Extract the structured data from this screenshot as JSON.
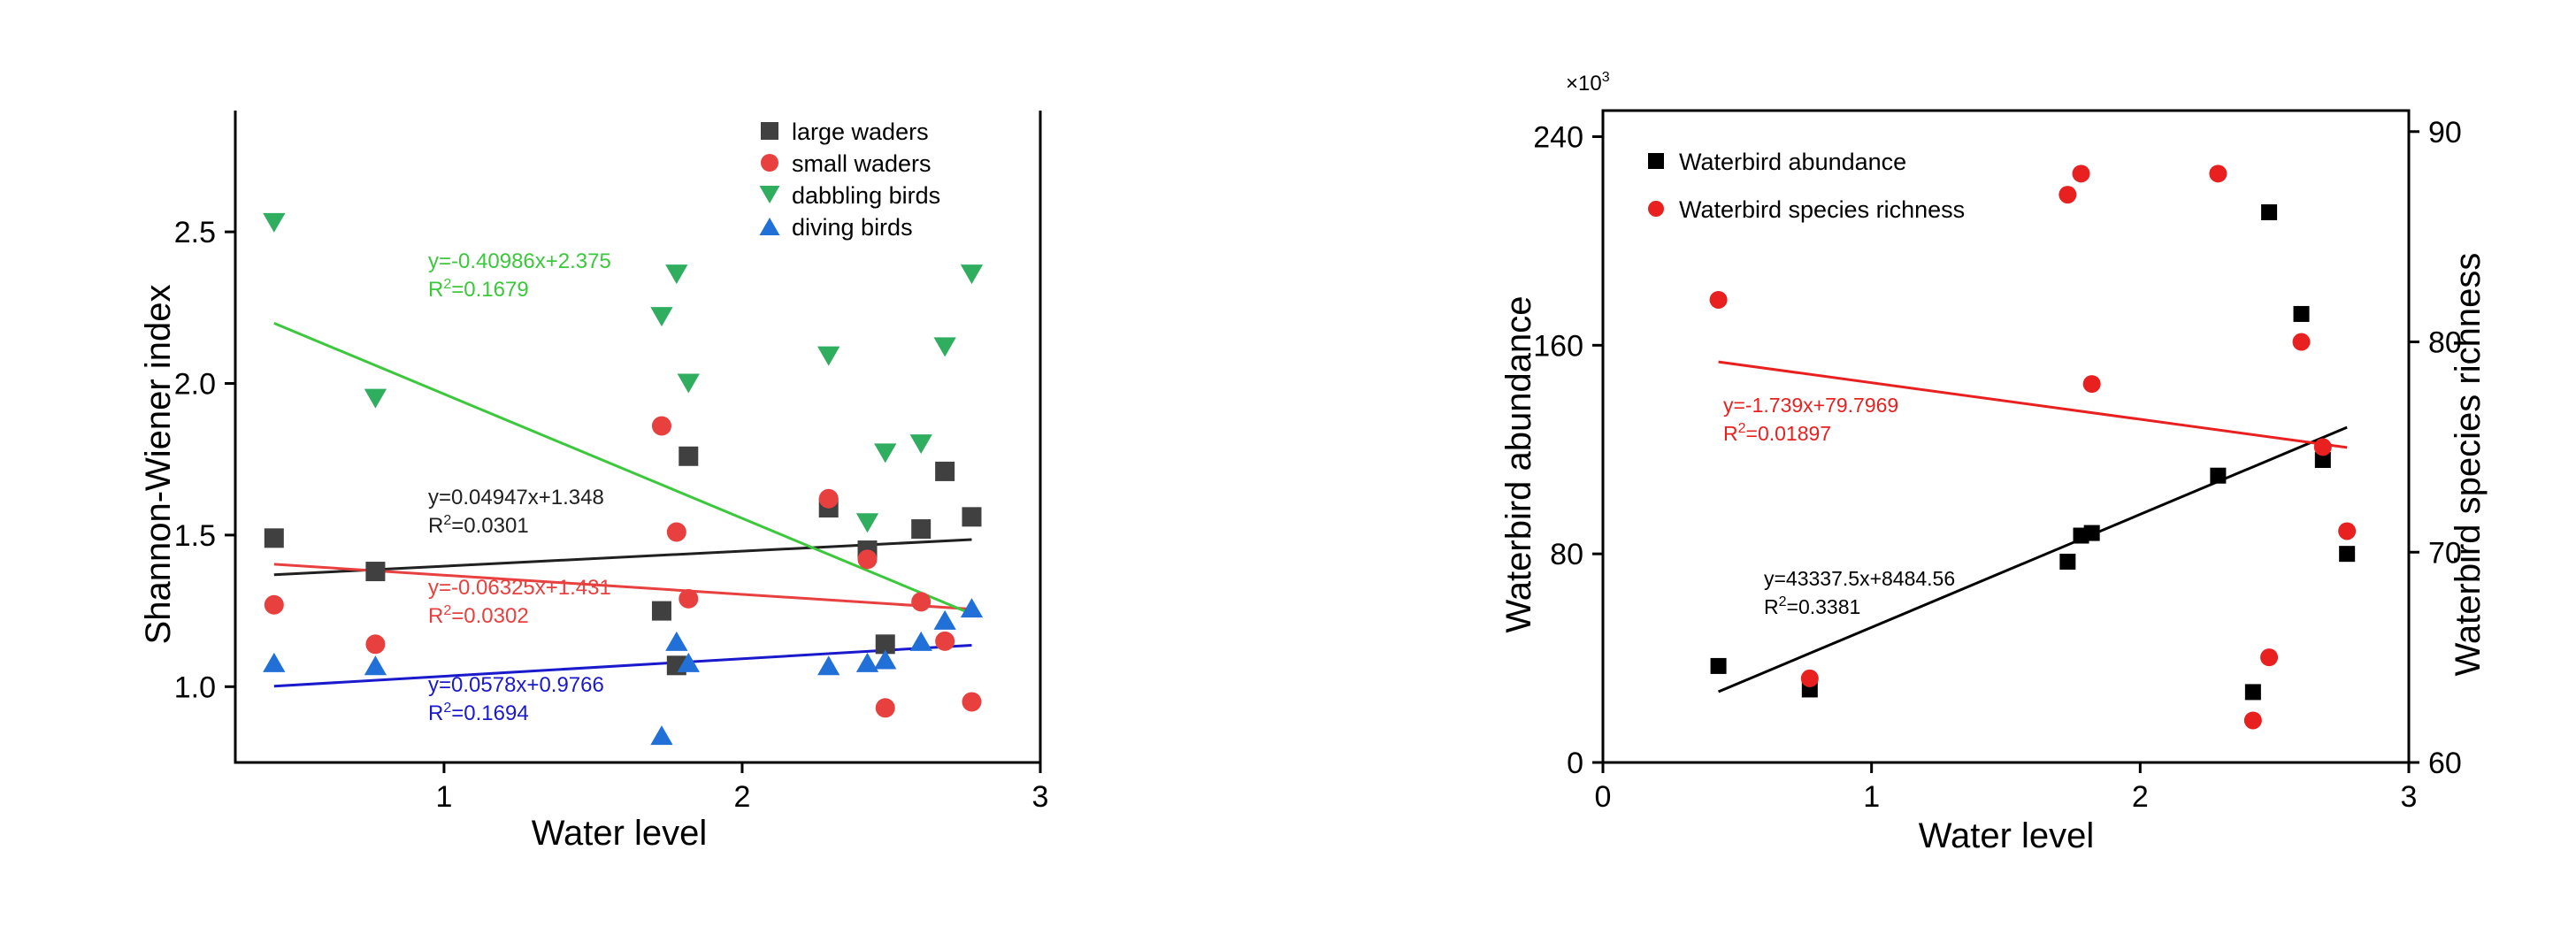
{
  "chart_data": [
    {
      "type": "scatter",
      "xlabel": "Water level",
      "ylabel": "Shannon-Wiener index",
      "xlim": [
        0.3,
        3.0
      ],
      "ylim": [
        0.75,
        2.9
      ],
      "xticks": [
        1,
        2,
        3
      ],
      "yticks": [
        1.0,
        1.5,
        2.0,
        2.5
      ],
      "ytick_labels": [
        "1.0",
        "1.5",
        "2.0",
        "2.5"
      ],
      "legend_position": "top-right",
      "series": [
        {
          "name": "large waders",
          "marker": "square",
          "color": "#404040",
          "points": [
            [
              0.43,
              1.49
            ],
            [
              0.77,
              1.38
            ],
            [
              1.73,
              1.25
            ],
            [
              1.78,
              1.07
            ],
            [
              1.82,
              1.76
            ],
            [
              2.29,
              1.59
            ],
            [
              2.42,
              1.45
            ],
            [
              2.48,
              1.14
            ],
            [
              2.6,
              1.52
            ],
            [
              2.68,
              1.71
            ],
            [
              2.77,
              1.56
            ]
          ],
          "fit": {
            "slope": 0.04947,
            "intercept": 1.348,
            "equation": "y=0.04947x+1.348",
            "r2_prefix": "R",
            "r2_value": "=0.0301",
            "color": "#202020"
          }
        },
        {
          "name": "small waders",
          "marker": "circle",
          "color": "#e8403f",
          "points": [
            [
              0.43,
              1.27
            ],
            [
              0.77,
              1.14
            ],
            [
              1.73,
              1.86
            ],
            [
              1.78,
              1.51
            ],
            [
              1.82,
              1.29
            ],
            [
              2.29,
              1.62
            ],
            [
              2.42,
              1.42
            ],
            [
              2.48,
              0.93
            ],
            [
              2.6,
              1.28
            ],
            [
              2.68,
              1.15
            ],
            [
              2.77,
              0.95
            ]
          ],
          "fit": {
            "slope": -0.06325,
            "intercept": 1.431,
            "equation": "y=-0.06325x+1.431",
            "r2_prefix": "R",
            "r2_value": "=0.0302",
            "color": "#e8403f"
          }
        },
        {
          "name": "dabbling birds",
          "marker": "triangle-down",
          "color": "#2fae60",
          "points": [
            [
              0.43,
              2.53
            ],
            [
              0.77,
              1.95
            ],
            [
              1.73,
              2.22
            ],
            [
              1.78,
              2.36
            ],
            [
              1.82,
              2.0
            ],
            [
              2.29,
              2.09
            ],
            [
              2.42,
              1.54
            ],
            [
              2.48,
              1.77
            ],
            [
              2.6,
              1.8
            ],
            [
              2.68,
              2.12
            ],
            [
              2.77,
              2.36
            ]
          ],
          "fit": {
            "slope": -0.40986,
            "intercept": 2.375,
            "equation": "y=-0.40986x+2.375",
            "r2_prefix": "R",
            "r2_value": "=0.1679",
            "color": "#3cc83c"
          }
        },
        {
          "name": "diving birds",
          "marker": "triangle-up",
          "color": "#2070d8",
          "points": [
            [
              0.43,
              1.08
            ],
            [
              0.77,
              1.07
            ],
            [
              1.73,
              0.84
            ],
            [
              1.78,
              1.15
            ],
            [
              1.82,
              1.08
            ],
            [
              2.29,
              1.07
            ],
            [
              2.42,
              1.08
            ],
            [
              2.48,
              1.09
            ],
            [
              2.6,
              1.15
            ],
            [
              2.68,
              1.22
            ],
            [
              2.77,
              1.26
            ]
          ],
          "fit": {
            "slope": 0.0578,
            "intercept": 0.9766,
            "equation": "y=0.0578x+0.9766",
            "r2_prefix": "R",
            "r2_value": "=0.1694",
            "color": "#1a1acc"
          }
        }
      ]
    },
    {
      "type": "scatter",
      "xlabel": "Water level",
      "ylabel_left": "Waterbird abundance",
      "ylabel_right": "Waterbird species richness",
      "multiplier": "×10",
      "multiplier_exp": "3",
      "xlim": [
        0,
        3
      ],
      "xticks": [
        0,
        1,
        2,
        3
      ],
      "ylim_left": [
        0,
        250
      ],
      "yticks_left": [
        0,
        80,
        160,
        240
      ],
      "ylim_right": [
        60,
        91
      ],
      "yticks_right": [
        60,
        70,
        80,
        90
      ],
      "legend_position": "top-left",
      "series": [
        {
          "name": "Waterbird abundance",
          "axis": "left",
          "marker": "square",
          "color": "#000000",
          "points": [
            [
              0.43,
              37
            ],
            [
              0.77,
              28
            ],
            [
              1.73,
              77
            ],
            [
              1.78,
              87
            ],
            [
              1.82,
              88
            ],
            [
              2.29,
              110
            ],
            [
              2.42,
              27
            ],
            [
              2.48,
              211
            ],
            [
              2.6,
              172
            ],
            [
              2.68,
              116
            ],
            [
              2.77,
              80
            ]
          ],
          "fit": {
            "slope": 43.3375,
            "intercept": 8.48456,
            "equation": "y=43337.5x+8484.56",
            "r2_prefix": "R",
            "r2_value": "=0.3381",
            "color": "#000000"
          }
        },
        {
          "name": "Waterbird species richness",
          "axis": "right",
          "marker": "circle",
          "color": "#e82020",
          "points": [
            [
              0.43,
              82
            ],
            [
              0.77,
              64
            ],
            [
              1.73,
              87
            ],
            [
              1.78,
              88
            ],
            [
              1.82,
              78
            ],
            [
              2.29,
              88
            ],
            [
              2.42,
              62
            ],
            [
              2.48,
              65
            ],
            [
              2.6,
              80
            ],
            [
              2.68,
              75
            ],
            [
              2.77,
              71
            ]
          ],
          "fit": {
            "slope": -1.739,
            "intercept": 79.7969,
            "equation": "y=-1.739x+79.7969",
            "r2_prefix": "R",
            "r2_value": "=0.01897",
            "color": "#e82020"
          }
        }
      ]
    }
  ]
}
